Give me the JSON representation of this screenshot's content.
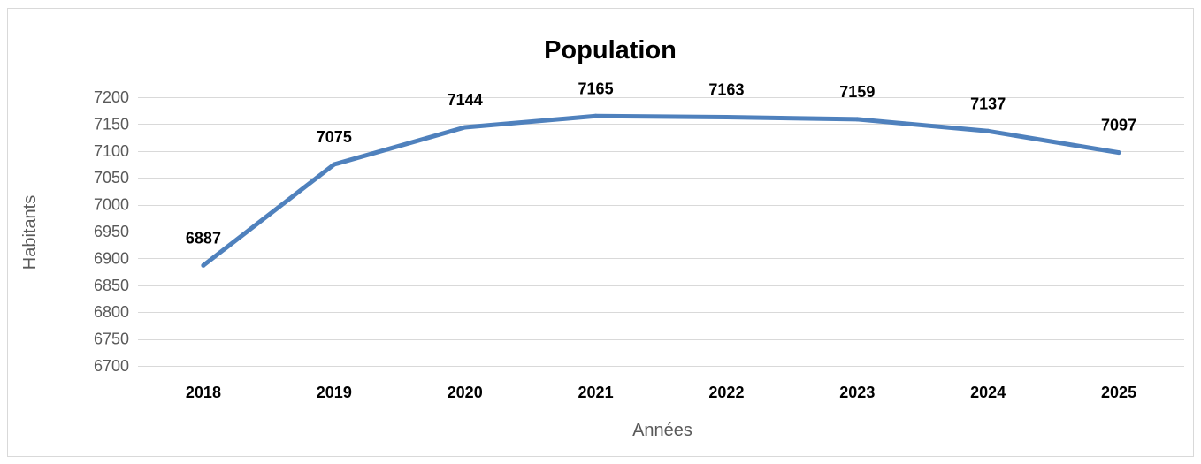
{
  "chart_data": {
    "type": "line",
    "title": "Population",
    "xlabel": "Années",
    "ylabel": "Habitants",
    "categories": [
      "2018",
      "2019",
      "2020",
      "2021",
      "2022",
      "2023",
      "2024",
      "2025"
    ],
    "series": [
      {
        "values": [
          6887,
          7075,
          7144,
          7165,
          7163,
          7159,
          7137,
          7097
        ],
        "color": "#4f81bd"
      }
    ],
    "data_labels": [
      "6887",
      "7075",
      "7144",
      "7165",
      "7163",
      "7159",
      "7137",
      "7097"
    ],
    "ylim": [
      6700,
      7200
    ],
    "yticks": [
      6700,
      6750,
      6800,
      6850,
      6900,
      6950,
      7000,
      7050,
      7100,
      7150,
      7200
    ],
    "grid": true,
    "legend": "none",
    "colors": {
      "line": "#4f81bd",
      "grid": "#d9d9d9",
      "tick_text": "#595959",
      "label_text": "#000000"
    }
  }
}
